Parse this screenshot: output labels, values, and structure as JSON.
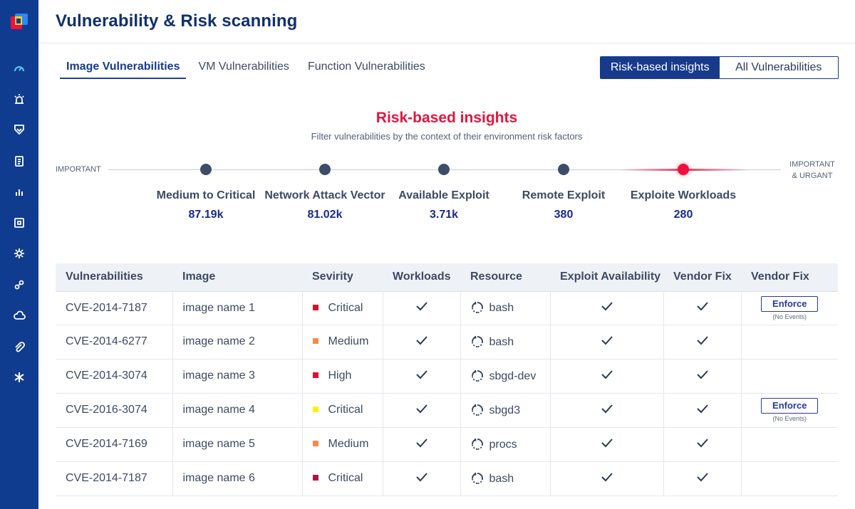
{
  "page": {
    "title": "Vulnerability & Risk scanning"
  },
  "tabs": [
    {
      "label": "Image Vulnerabilities",
      "active": true
    },
    {
      "label": "VM Vulnerabilities",
      "active": false
    },
    {
      "label": "Function Vulnerabilities",
      "active": false
    }
  ],
  "view_toggle": {
    "selected": "Risk-based insights",
    "options": [
      "Risk-based insights",
      "All Vulnerabilities"
    ]
  },
  "sidebar": {
    "icons": [
      "speedometer-icon",
      "alarm-icon",
      "shield-icon",
      "clipboard-icon",
      "bar-chart-icon",
      "box-icon",
      "gear-icon",
      "link-icon",
      "cloud-icon",
      "paperclip-icon",
      "asterisk-icon"
    ]
  },
  "insights": {
    "title": "Risk-based insights",
    "subtitle": "Filter vulnerabilities by the context of their environment risk factors",
    "scale_left": "IMPORTANT",
    "scale_right_line1": "IMPORTANT",
    "scale_right_line2": "& URGANT",
    "factors": [
      {
        "label": "Medium to Critical",
        "value": "87.19k"
      },
      {
        "label": "Network Attack Vector",
        "value": "81.02k"
      },
      {
        "label": "Available Exploit",
        "value": "3.71k"
      },
      {
        "label": "Remote Exploit",
        "value": "380"
      },
      {
        "label": "Exploite Workloads",
        "value": "280",
        "highlighted": true
      }
    ]
  },
  "table": {
    "headers": [
      "Vulnerabilities",
      "Image",
      "Sevirity",
      "Workloads",
      "Resource",
      "Exploit Availability",
      "Vendor Fix",
      "Vendor Fix"
    ],
    "enforce_label": "Enforce",
    "enforce_note": "(No Events)",
    "rows": [
      {
        "cve": "CVE-2014-7187",
        "image": "image name 1",
        "severity": "Critical",
        "severity_color": "#d8102c",
        "resource": "bash",
        "enforce": true
      },
      {
        "cve": "CVE-2014-6277",
        "image": "image name 2",
        "severity": "Medium",
        "severity_color": "#f58b4c",
        "resource": "bash",
        "enforce": false
      },
      {
        "cve": "CVE-2014-3074",
        "image": "image name 3",
        "severity": "High",
        "severity_color": "#e0102a",
        "resource": "sbgd-dev",
        "enforce": false
      },
      {
        "cve": "CVE-2016-3074",
        "image": "image name 4",
        "severity": "Critical",
        "severity_color": "#fff200",
        "resource": "sbgd3",
        "enforce": true
      },
      {
        "cve": "CVE-2014-7169",
        "image": "image name 5",
        "severity": "Medium",
        "severity_color": "#f58b4c",
        "resource": "procs",
        "enforce": false
      },
      {
        "cve": "CVE-2014-7187",
        "image": "image name 6",
        "severity": "Critical",
        "severity_color": "#b5104a",
        "resource": "bash",
        "enforce": false
      }
    ]
  }
}
